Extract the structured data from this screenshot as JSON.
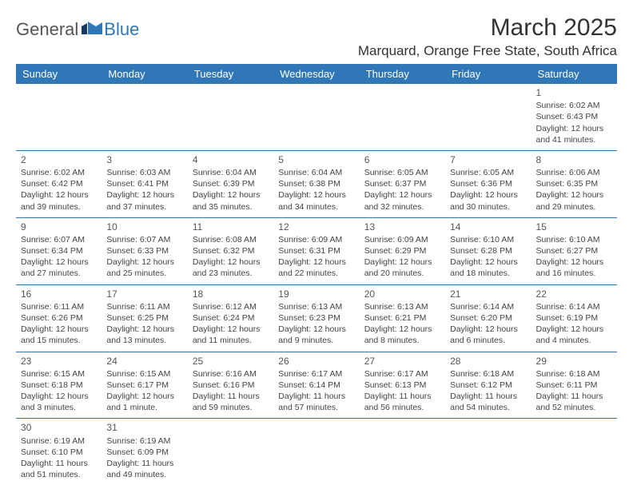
{
  "logo": {
    "general": "General",
    "blue": "Blue"
  },
  "header": {
    "month_title": "March 2025",
    "location": "Marquard, Orange Free State, South Africa"
  },
  "colors": {
    "header_bg": "#2f77b6",
    "header_text": "#ffffff",
    "border": "#2f77b6",
    "body_text": "#444444",
    "title_text": "#333333"
  },
  "weekdays": [
    "Sunday",
    "Monday",
    "Tuesday",
    "Wednesday",
    "Thursday",
    "Friday",
    "Saturday"
  ],
  "weeks": [
    [
      null,
      null,
      null,
      null,
      null,
      null,
      {
        "n": "1",
        "sr": "Sunrise: 6:02 AM",
        "ss": "Sunset: 6:43 PM",
        "dl1": "Daylight: 12 hours",
        "dl2": "and 41 minutes."
      }
    ],
    [
      {
        "n": "2",
        "sr": "Sunrise: 6:02 AM",
        "ss": "Sunset: 6:42 PM",
        "dl1": "Daylight: 12 hours",
        "dl2": "and 39 minutes."
      },
      {
        "n": "3",
        "sr": "Sunrise: 6:03 AM",
        "ss": "Sunset: 6:41 PM",
        "dl1": "Daylight: 12 hours",
        "dl2": "and 37 minutes."
      },
      {
        "n": "4",
        "sr": "Sunrise: 6:04 AM",
        "ss": "Sunset: 6:39 PM",
        "dl1": "Daylight: 12 hours",
        "dl2": "and 35 minutes."
      },
      {
        "n": "5",
        "sr": "Sunrise: 6:04 AM",
        "ss": "Sunset: 6:38 PM",
        "dl1": "Daylight: 12 hours",
        "dl2": "and 34 minutes."
      },
      {
        "n": "6",
        "sr": "Sunrise: 6:05 AM",
        "ss": "Sunset: 6:37 PM",
        "dl1": "Daylight: 12 hours",
        "dl2": "and 32 minutes."
      },
      {
        "n": "7",
        "sr": "Sunrise: 6:05 AM",
        "ss": "Sunset: 6:36 PM",
        "dl1": "Daylight: 12 hours",
        "dl2": "and 30 minutes."
      },
      {
        "n": "8",
        "sr": "Sunrise: 6:06 AM",
        "ss": "Sunset: 6:35 PM",
        "dl1": "Daylight: 12 hours",
        "dl2": "and 29 minutes."
      }
    ],
    [
      {
        "n": "9",
        "sr": "Sunrise: 6:07 AM",
        "ss": "Sunset: 6:34 PM",
        "dl1": "Daylight: 12 hours",
        "dl2": "and 27 minutes."
      },
      {
        "n": "10",
        "sr": "Sunrise: 6:07 AM",
        "ss": "Sunset: 6:33 PM",
        "dl1": "Daylight: 12 hours",
        "dl2": "and 25 minutes."
      },
      {
        "n": "11",
        "sr": "Sunrise: 6:08 AM",
        "ss": "Sunset: 6:32 PM",
        "dl1": "Daylight: 12 hours",
        "dl2": "and 23 minutes."
      },
      {
        "n": "12",
        "sr": "Sunrise: 6:09 AM",
        "ss": "Sunset: 6:31 PM",
        "dl1": "Daylight: 12 hours",
        "dl2": "and 22 minutes."
      },
      {
        "n": "13",
        "sr": "Sunrise: 6:09 AM",
        "ss": "Sunset: 6:29 PM",
        "dl1": "Daylight: 12 hours",
        "dl2": "and 20 minutes."
      },
      {
        "n": "14",
        "sr": "Sunrise: 6:10 AM",
        "ss": "Sunset: 6:28 PM",
        "dl1": "Daylight: 12 hours",
        "dl2": "and 18 minutes."
      },
      {
        "n": "15",
        "sr": "Sunrise: 6:10 AM",
        "ss": "Sunset: 6:27 PM",
        "dl1": "Daylight: 12 hours",
        "dl2": "and 16 minutes."
      }
    ],
    [
      {
        "n": "16",
        "sr": "Sunrise: 6:11 AM",
        "ss": "Sunset: 6:26 PM",
        "dl1": "Daylight: 12 hours",
        "dl2": "and 15 minutes."
      },
      {
        "n": "17",
        "sr": "Sunrise: 6:11 AM",
        "ss": "Sunset: 6:25 PM",
        "dl1": "Daylight: 12 hours",
        "dl2": "and 13 minutes."
      },
      {
        "n": "18",
        "sr": "Sunrise: 6:12 AM",
        "ss": "Sunset: 6:24 PM",
        "dl1": "Daylight: 12 hours",
        "dl2": "and 11 minutes."
      },
      {
        "n": "19",
        "sr": "Sunrise: 6:13 AM",
        "ss": "Sunset: 6:23 PM",
        "dl1": "Daylight: 12 hours",
        "dl2": "and 9 minutes."
      },
      {
        "n": "20",
        "sr": "Sunrise: 6:13 AM",
        "ss": "Sunset: 6:21 PM",
        "dl1": "Daylight: 12 hours",
        "dl2": "and 8 minutes."
      },
      {
        "n": "21",
        "sr": "Sunrise: 6:14 AM",
        "ss": "Sunset: 6:20 PM",
        "dl1": "Daylight: 12 hours",
        "dl2": "and 6 minutes."
      },
      {
        "n": "22",
        "sr": "Sunrise: 6:14 AM",
        "ss": "Sunset: 6:19 PM",
        "dl1": "Daylight: 12 hours",
        "dl2": "and 4 minutes."
      }
    ],
    [
      {
        "n": "23",
        "sr": "Sunrise: 6:15 AM",
        "ss": "Sunset: 6:18 PM",
        "dl1": "Daylight: 12 hours",
        "dl2": "and 3 minutes."
      },
      {
        "n": "24",
        "sr": "Sunrise: 6:15 AM",
        "ss": "Sunset: 6:17 PM",
        "dl1": "Daylight: 12 hours",
        "dl2": "and 1 minute."
      },
      {
        "n": "25",
        "sr": "Sunrise: 6:16 AM",
        "ss": "Sunset: 6:16 PM",
        "dl1": "Daylight: 11 hours",
        "dl2": "and 59 minutes."
      },
      {
        "n": "26",
        "sr": "Sunrise: 6:17 AM",
        "ss": "Sunset: 6:14 PM",
        "dl1": "Daylight: 11 hours",
        "dl2": "and 57 minutes."
      },
      {
        "n": "27",
        "sr": "Sunrise: 6:17 AM",
        "ss": "Sunset: 6:13 PM",
        "dl1": "Daylight: 11 hours",
        "dl2": "and 56 minutes."
      },
      {
        "n": "28",
        "sr": "Sunrise: 6:18 AM",
        "ss": "Sunset: 6:12 PM",
        "dl1": "Daylight: 11 hours",
        "dl2": "and 54 minutes."
      },
      {
        "n": "29",
        "sr": "Sunrise: 6:18 AM",
        "ss": "Sunset: 6:11 PM",
        "dl1": "Daylight: 11 hours",
        "dl2": "and 52 minutes."
      }
    ],
    [
      {
        "n": "30",
        "sr": "Sunrise: 6:19 AM",
        "ss": "Sunset: 6:10 PM",
        "dl1": "Daylight: 11 hours",
        "dl2": "and 51 minutes."
      },
      {
        "n": "31",
        "sr": "Sunrise: 6:19 AM",
        "ss": "Sunset: 6:09 PM",
        "dl1": "Daylight: 11 hours",
        "dl2": "and 49 minutes."
      },
      null,
      null,
      null,
      null,
      null
    ]
  ]
}
